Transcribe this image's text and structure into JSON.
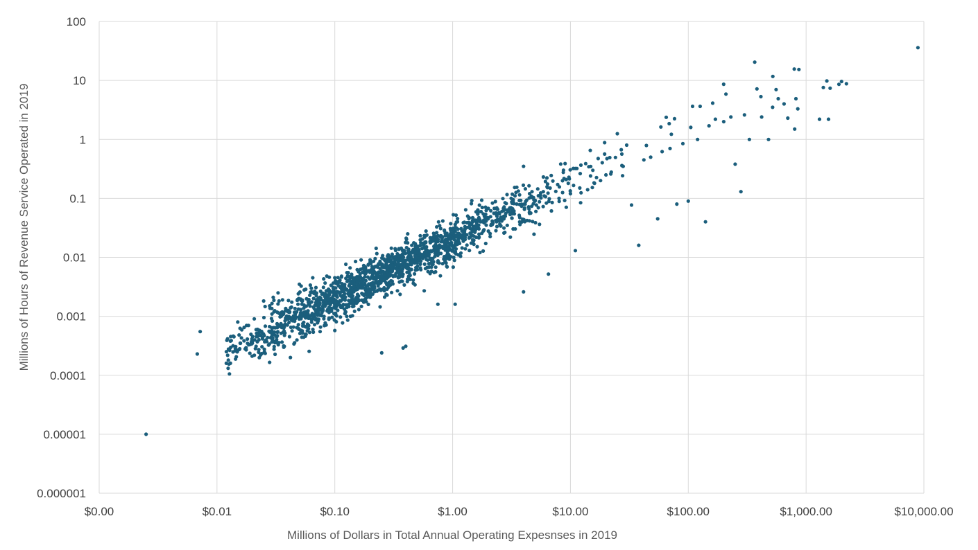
{
  "chart_data": {
    "type": "scatter",
    "title": "",
    "xlabel": "Millions of Dollars in Total Annual Operating Expesnses in 2019",
    "ylabel": "Millions of Hours of Revenue Service Operated in 2019",
    "xscale": "log",
    "yscale": "log",
    "xlim": [
      0.001,
      10000
    ],
    "ylim": [
      1e-06,
      100
    ],
    "grid": true,
    "legend": "none",
    "point_color": "#1b5e7c",
    "grid_color": "#d9d9d9",
    "x_tick_labels": [
      "$0.00",
      "$0.01",
      "$0.10",
      "$1.00",
      "$10.00",
      "$100.00",
      "$1,000.00",
      "$10,000.00"
    ],
    "y_tick_labels": [
      "0.000001",
      "0.00001",
      "0.0001",
      "0.001",
      "0.01",
      "0.1",
      "1",
      "10",
      "100"
    ],
    "trend_samples": {
      "slope": 1.0,
      "intercept": -1.7,
      "xmin": 0.012,
      "xmax": 900,
      "scatter_sd": 0.18
    },
    "points": [
      [
        0.0025,
        1e-05
      ],
      [
        0.0068,
        0.00023
      ],
      [
        0.0072,
        0.00055
      ],
      [
        0.012,
        0.00016
      ],
      [
        0.013,
        0.00016
      ],
      [
        0.013,
        0.00038
      ],
      [
        0.015,
        0.0008
      ],
      [
        0.017,
        0.00065
      ],
      [
        0.02,
        0.00038
      ],
      [
        0.022,
        0.00037
      ],
      [
        0.025,
        0.00095
      ],
      [
        0.028,
        0.0015
      ],
      [
        0.03,
        0.0021
      ],
      [
        0.033,
        0.0025
      ],
      [
        0.036,
        0.0019
      ],
      [
        0.04,
        0.0012
      ],
      [
        0.042,
        0.0002
      ],
      [
        0.045,
        0.00034
      ],
      [
        0.05,
        0.0035
      ],
      [
        0.055,
        0.0028
      ],
      [
        0.06,
        0.0016
      ],
      [
        0.065,
        0.0045
      ],
      [
        0.07,
        0.0009
      ],
      [
        0.075,
        0.00055
      ],
      [
        0.08,
        0.0031
      ],
      [
        0.09,
        0.0025
      ],
      [
        0.1,
        0.0045
      ],
      [
        0.11,
        0.0038
      ],
      [
        0.13,
        0.0055
      ],
      [
        0.15,
        0.0085
      ],
      [
        0.16,
        0.0013
      ],
      [
        0.18,
        0.0062
      ],
      [
        0.2,
        0.0085
      ],
      [
        0.22,
        0.0095
      ],
      [
        0.25,
        0.00024
      ],
      [
        0.25,
        0.0075
      ],
      [
        0.28,
        0.0105
      ],
      [
        0.3,
        0.009
      ],
      [
        0.35,
        0.014
      ],
      [
        0.38,
        0.00029
      ],
      [
        0.4,
        0.00031
      ],
      [
        0.45,
        0.016
      ],
      [
        0.5,
        0.012
      ],
      [
        0.55,
        0.011
      ],
      [
        0.6,
        0.015
      ],
      [
        0.7,
        0.025
      ],
      [
        0.75,
        0.0016
      ],
      [
        0.8,
        0.022
      ],
      [
        0.9,
        0.018
      ],
      [
        1.0,
        0.021
      ],
      [
        1.05,
        0.0016
      ],
      [
        1.1,
        0.023
      ],
      [
        1.2,
        0.028
      ],
      [
        1.4,
        0.035
      ],
      [
        1.6,
        0.031
      ],
      [
        1.8,
        0.04
      ],
      [
        2.0,
        0.045
      ],
      [
        2.2,
        0.038
      ],
      [
        2.5,
        0.055
      ],
      [
        2.8,
        0.05
      ],
      [
        3.0,
        0.065
      ],
      [
        3.5,
        0.08
      ],
      [
        4.0,
        0.0026
      ],
      [
        4.0,
        0.35
      ],
      [
        4.5,
        0.12
      ],
      [
        5.0,
        0.09
      ],
      [
        6.0,
        0.11
      ],
      [
        6.5,
        0.0052
      ],
      [
        7.0,
        0.085
      ],
      [
        8.0,
        0.1
      ],
      [
        9.0,
        0.39
      ],
      [
        10.0,
        0.12
      ],
      [
        11.0,
        0.013
      ],
      [
        12.0,
        0.15
      ],
      [
        14.0,
        0.14
      ],
      [
        16.0,
        0.18
      ],
      [
        18.0,
        0.2
      ],
      [
        20.0,
        0.25
      ],
      [
        22.0,
        0.26
      ],
      [
        25.0,
        1.25
      ],
      [
        28.0,
        0.35
      ],
      [
        30.0,
        0.8
      ],
      [
        33.0,
        0.077
      ],
      [
        38.0,
        0.016
      ],
      [
        42.0,
        0.45
      ],
      [
        48.0,
        0.5
      ],
      [
        55.0,
        0.045
      ],
      [
        60.0,
        0.62
      ],
      [
        70.0,
        0.7
      ],
      [
        80.0,
        0.08
      ],
      [
        90.0,
        0.85
      ],
      [
        100.0,
        0.09
      ],
      [
        105.0,
        1.6
      ],
      [
        120.0,
        1.0
      ],
      [
        140.0,
        0.04
      ],
      [
        150.0,
        1.7
      ],
      [
        170.0,
        2.2
      ],
      [
        200.0,
        2.0
      ],
      [
        230.0,
        2.4
      ],
      [
        250.0,
        0.38
      ],
      [
        280.0,
        0.13
      ],
      [
        300.0,
        2.6
      ],
      [
        330.0,
        1.0
      ],
      [
        420.0,
        2.4
      ],
      [
        480.0,
        1.0
      ],
      [
        520.0,
        3.5
      ],
      [
        580.0,
        4.9
      ],
      [
        650.0,
        4.0
      ],
      [
        700.0,
        2.3
      ],
      [
        800.0,
        1.5
      ],
      [
        820.0,
        4.9
      ],
      [
        850.0,
        3.3
      ],
      [
        1300.0,
        2.2
      ],
      [
        1400.0,
        7.6
      ],
      [
        1500.0,
        9.8
      ],
      [
        1550.0,
        2.2
      ],
      [
        1600.0,
        7.4
      ],
      [
        1900.0,
        8.6
      ],
      [
        2000.0,
        9.6
      ],
      [
        2200.0,
        8.8
      ],
      [
        8900.0,
        36.0
      ]
    ]
  }
}
